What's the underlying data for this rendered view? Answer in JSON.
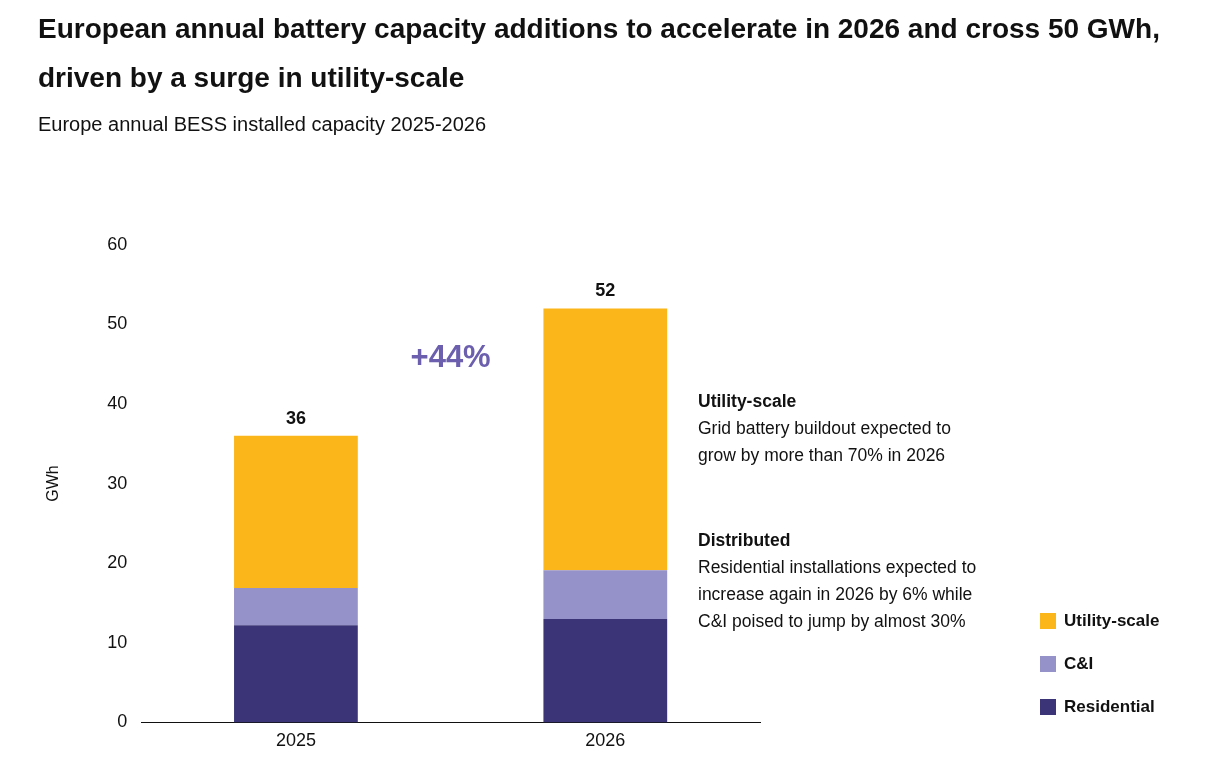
{
  "chart_data": {
    "type": "bar",
    "title": "European annual battery capacity additions to accelerate in 2026 and cross 50 GWh, driven by a surge in utility-scale",
    "subtitle": "Europe annual BESS installed capacity 2025-2026",
    "ylabel": "GWh",
    "categories": [
      "2025",
      "2026"
    ],
    "stacked": true,
    "series": [
      {
        "name": "Residential",
        "color": "#3b3577",
        "values": [
          12.2,
          13.0
        ]
      },
      {
        "name": "C&I",
        "color": "#9591c9",
        "values": [
          4.7,
          6.1
        ]
      },
      {
        "name": "Utility-scale",
        "color": "#fbb61a",
        "values": [
          19.1,
          32.9
        ]
      }
    ],
    "totals": [
      "36",
      "52"
    ],
    "ylim": [
      0,
      60
    ],
    "yticks": [
      0,
      10,
      20,
      30,
      40,
      50,
      60
    ],
    "grid": false,
    "legend": "bottom right",
    "annotations": [
      "+44%",
      "Utility-scale",
      "Grid battery buildout expected to grow by more than 70% in 2026",
      "Distributed",
      "Residential installations expected to increase again in 2026 by 6% while C&I poised to jump by almost 30%"
    ]
  }
}
